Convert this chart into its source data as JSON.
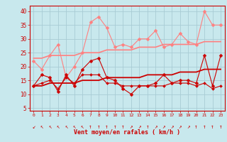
{
  "xlabel": "Vent moyen/en rafales ( km/h )",
  "bg_color": "#c8e8ed",
  "grid_color": "#a8ccd4",
  "x_ticks": [
    0,
    1,
    2,
    3,
    4,
    5,
    6,
    7,
    8,
    9,
    10,
    11,
    12,
    13,
    14,
    15,
    16,
    17,
    18,
    19,
    20,
    21,
    22,
    23
  ],
  "ylim": [
    4,
    42
  ],
  "yticks": [
    5,
    10,
    15,
    20,
    25,
    30,
    35,
    40
  ],
  "series": [
    {
      "y": [
        22,
        19,
        24,
        28,
        16,
        20,
        25,
        36,
        38,
        34,
        27,
        28,
        27,
        30,
        30,
        33,
        27,
        28,
        32,
        29,
        28,
        40,
        35,
        35
      ],
      "color": "#ff8080",
      "lw": 0.8,
      "marker": "D",
      "ms": 2.5
    },
    {
      "y": [
        23,
        23,
        24,
        24,
        24,
        24,
        25,
        25,
        25,
        26,
        26,
        26,
        26,
        27,
        27,
        27,
        28,
        28,
        28,
        28,
        28,
        29,
        29,
        29
      ],
      "color": "#ff8080",
      "lw": 1.2,
      "marker": null,
      "ms": 0
    },
    {
      "y": [
        13,
        17,
        16,
        11,
        17,
        13,
        19,
        22,
        23,
        16,
        15,
        12,
        10,
        13,
        13,
        14,
        17,
        14,
        15,
        15,
        14,
        24,
        13,
        24
      ],
      "color": "#cc0000",
      "lw": 0.8,
      "marker": "D",
      "ms": 2.5
    },
    {
      "y": [
        13,
        13,
        14,
        14,
        14,
        14,
        15,
        15,
        15,
        16,
        16,
        16,
        16,
        16,
        17,
        17,
        17,
        17,
        18,
        18,
        18,
        19,
        19,
        19
      ],
      "color": "#cc0000",
      "lw": 1.3,
      "marker": null,
      "ms": 0
    },
    {
      "y": [
        13,
        14,
        15,
        12,
        16,
        14,
        17,
        17,
        17,
        14,
        14,
        13,
        13,
        13,
        13,
        13,
        13,
        14,
        14,
        14,
        13,
        14,
        12,
        13
      ],
      "color": "#cc0000",
      "lw": 0.8,
      "marker": "D",
      "ms": 2.0
    }
  ],
  "arrow_chars": [
    "↙",
    "↖",
    "↖",
    "↖",
    "↖",
    "↖",
    "↖",
    "↑",
    "↑",
    "↑",
    "↑",
    "↑",
    "↗",
    "↗",
    "↑",
    "↗",
    "↗",
    "↗",
    "↗",
    "↗",
    "↑",
    "↑",
    "↑",
    "↑"
  ]
}
